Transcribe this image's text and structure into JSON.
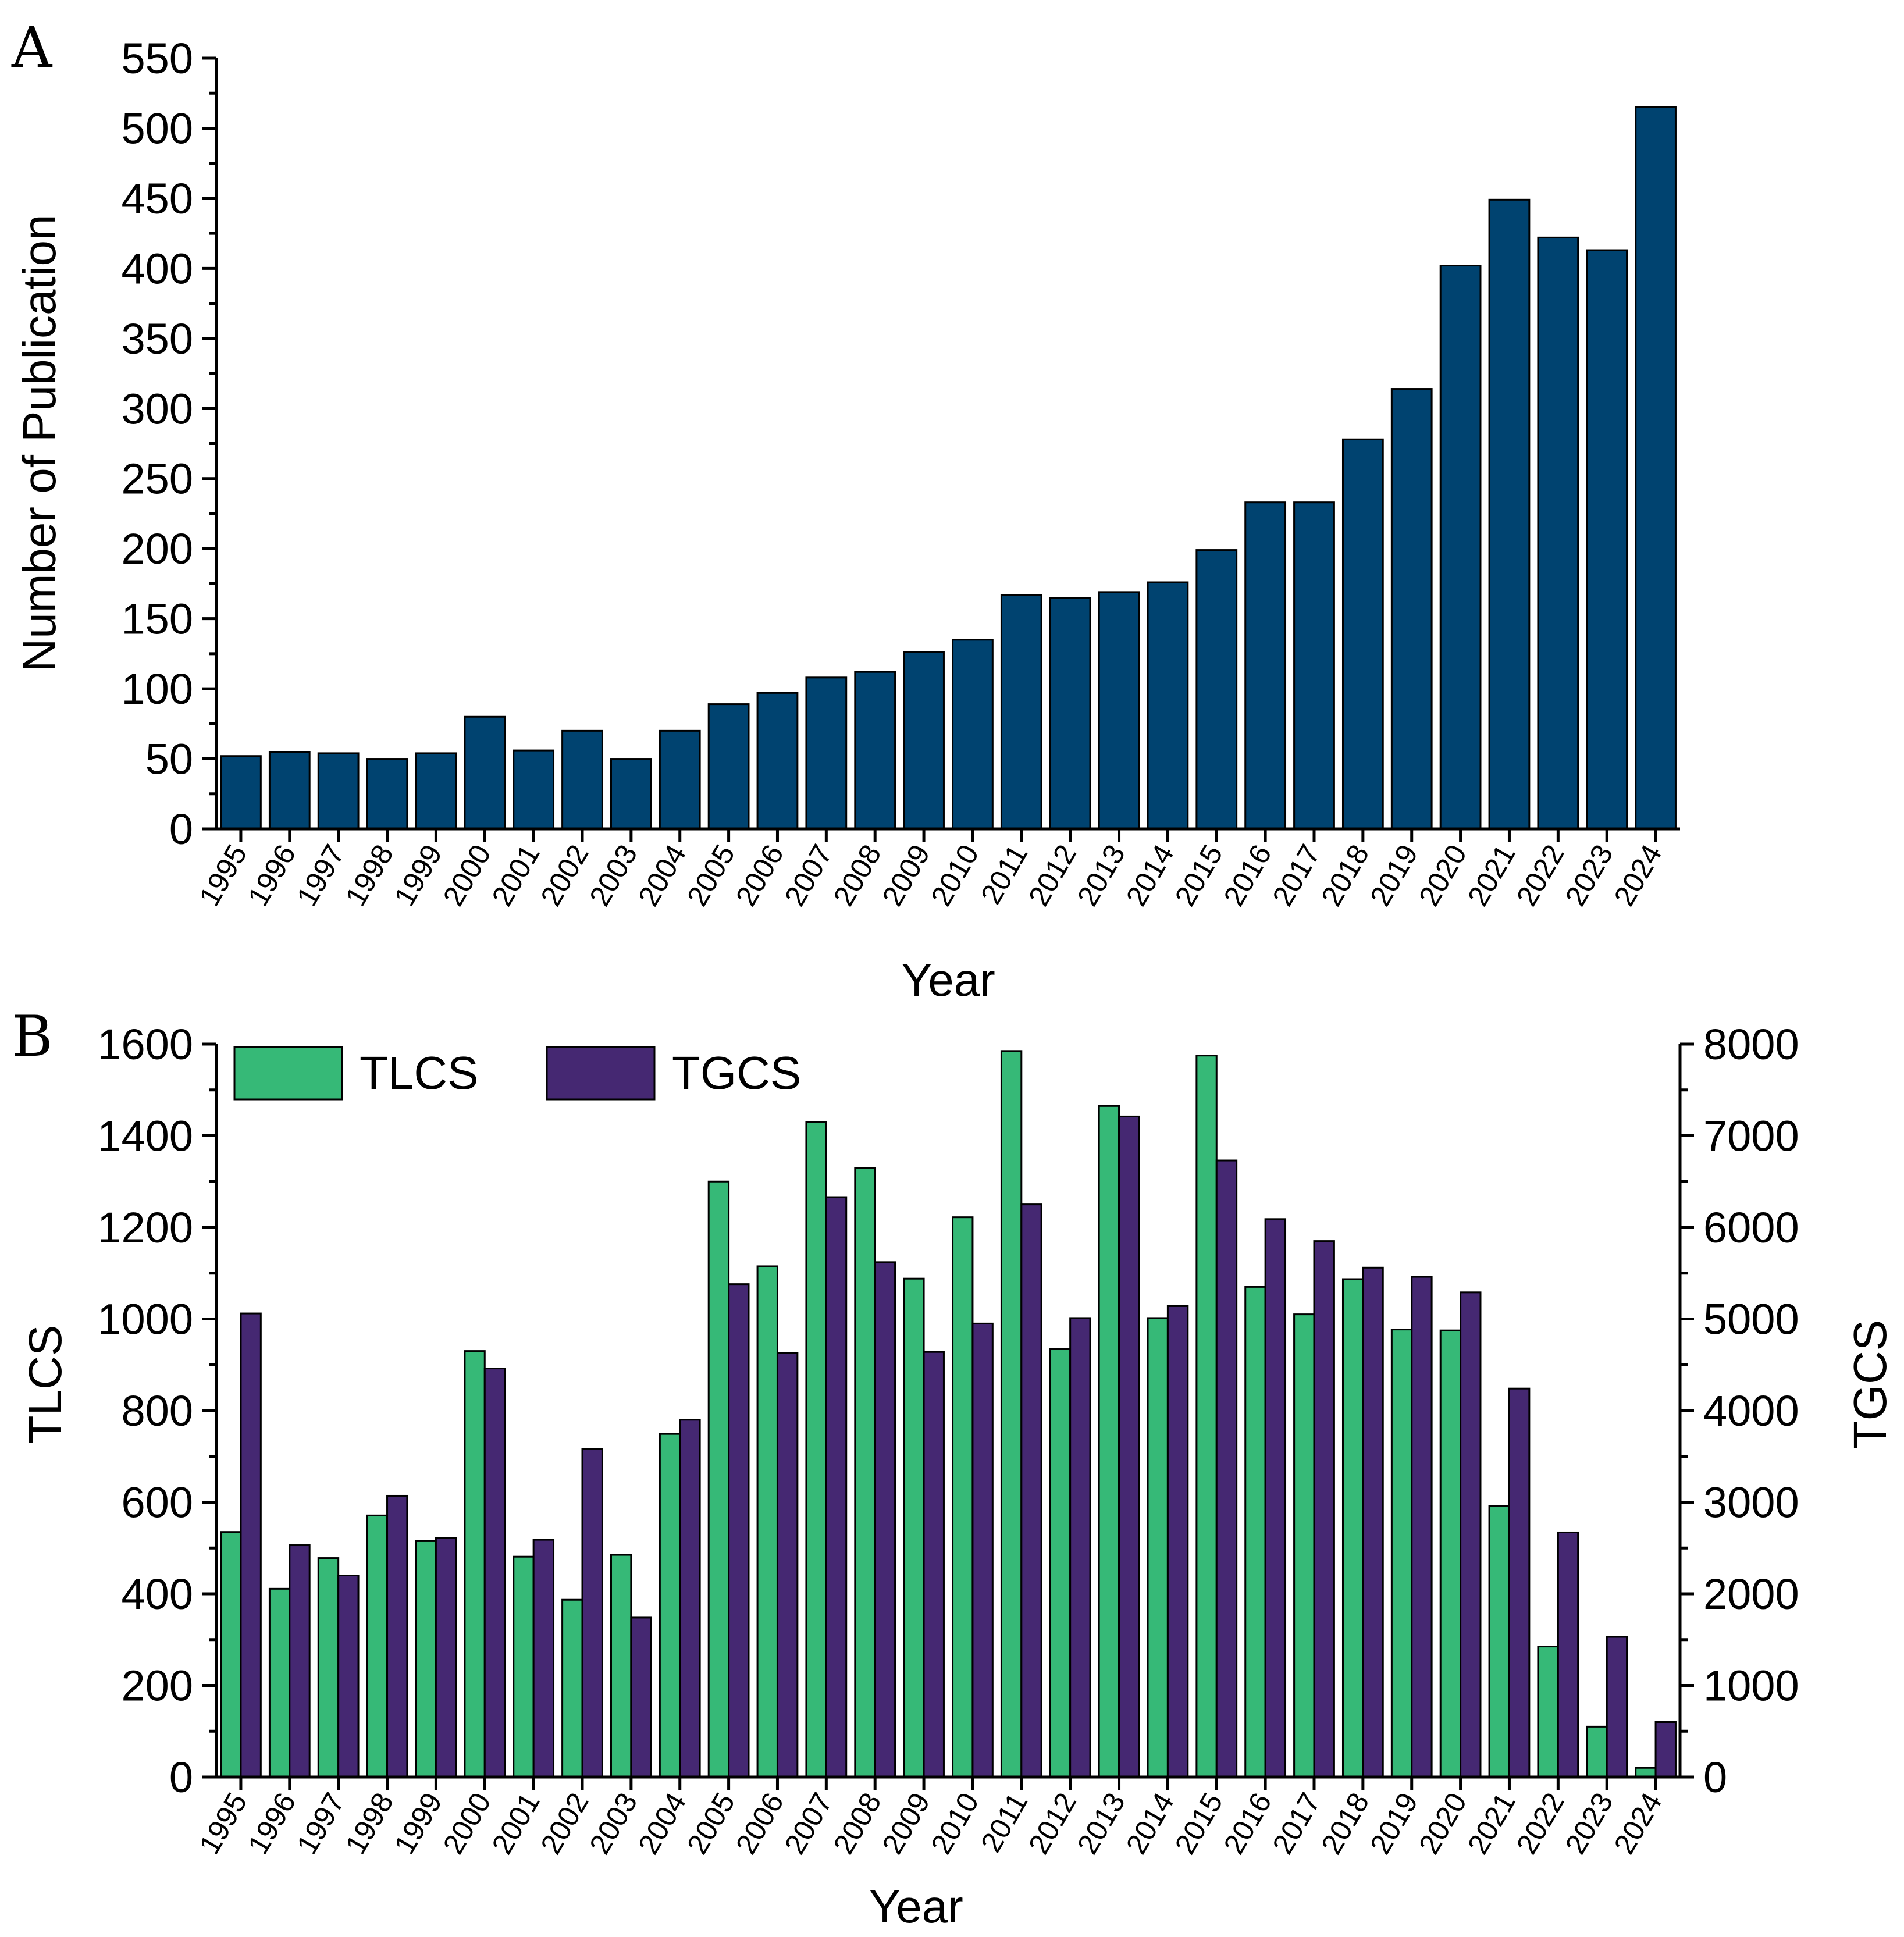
{
  "chart_data": [
    {
      "panel": "A",
      "type": "bar",
      "xlabel": "Year",
      "ylabel": "Number of Publication",
      "ylim": [
        0,
        550
      ],
      "yticks": [
        0,
        50,
        100,
        150,
        200,
        250,
        300,
        350,
        400,
        450,
        500,
        550
      ],
      "categories": [
        "1995",
        "1996",
        "1997",
        "1998",
        "1999",
        "2000",
        "2001",
        "2002",
        "2003",
        "2004",
        "2005",
        "2006",
        "2007",
        "2008",
        "2009",
        "2010",
        "2011",
        "2012",
        "2013",
        "2014",
        "2015",
        "2016",
        "2017",
        "2018",
        "2019",
        "2020",
        "2021",
        "2022",
        "2023",
        "2024"
      ],
      "series": [
        {
          "color": "#004370",
          "values": [
            52,
            55,
            54,
            50,
            54,
            80,
            56,
            70,
            50,
            70,
            89,
            97,
            108,
            112,
            126,
            135,
            167,
            165,
            169,
            176,
            199,
            233,
            233,
            278,
            314,
            402,
            449,
            422,
            413,
            515
          ]
        }
      ],
      "grid": false
    },
    {
      "panel": "B",
      "type": "bar",
      "xlabel": "Year",
      "ylabel": "TLCS",
      "ylabel_right": "TGCS",
      "ylim": [
        0,
        1600
      ],
      "ylim_right": [
        0,
        8000
      ],
      "yticks": [
        0,
        200,
        400,
        600,
        800,
        1000,
        1200,
        1400,
        1600
      ],
      "yticks_right": [
        0,
        1000,
        2000,
        3000,
        4000,
        5000,
        6000,
        7000,
        8000
      ],
      "categories": [
        "1995",
        "1996",
        "1997",
        "1998",
        "1999",
        "2000",
        "2001",
        "2002",
        "2003",
        "2004",
        "2005",
        "2006",
        "2007",
        "2008",
        "2009",
        "2010",
        "2011",
        "2012",
        "2013",
        "2014",
        "2015",
        "2016",
        "2017",
        "2018",
        "2019",
        "2020",
        "2021",
        "2022",
        "2023",
        "2024"
      ],
      "series": [
        {
          "name": "TLCS",
          "axis": "left",
          "color": "#36b977",
          "values": [
            535,
            411,
            478,
            571,
            515,
            930,
            481,
            387,
            485,
            749,
            1300,
            1115,
            1430,
            1330,
            1088,
            1222,
            1585,
            935,
            1465,
            1002,
            1575,
            1070,
            1010,
            1087,
            977,
            975,
            592,
            285,
            110,
            20
          ]
        },
        {
          "name": "TGCS",
          "axis": "right",
          "color": "#452872",
          "values": [
            5060,
            2530,
            2200,
            3070,
            2610,
            4460,
            2590,
            3580,
            1740,
            3900,
            5380,
            4630,
            6330,
            5620,
            4640,
            4950,
            6250,
            5010,
            7210,
            5140,
            6730,
            6090,
            5850,
            5560,
            5460,
            5290,
            4240,
            2670,
            1530,
            600
          ]
        }
      ],
      "legend": {
        "position": "top-left",
        "entries": [
          "TLCS",
          "TGCS"
        ]
      },
      "grid": false
    }
  ]
}
